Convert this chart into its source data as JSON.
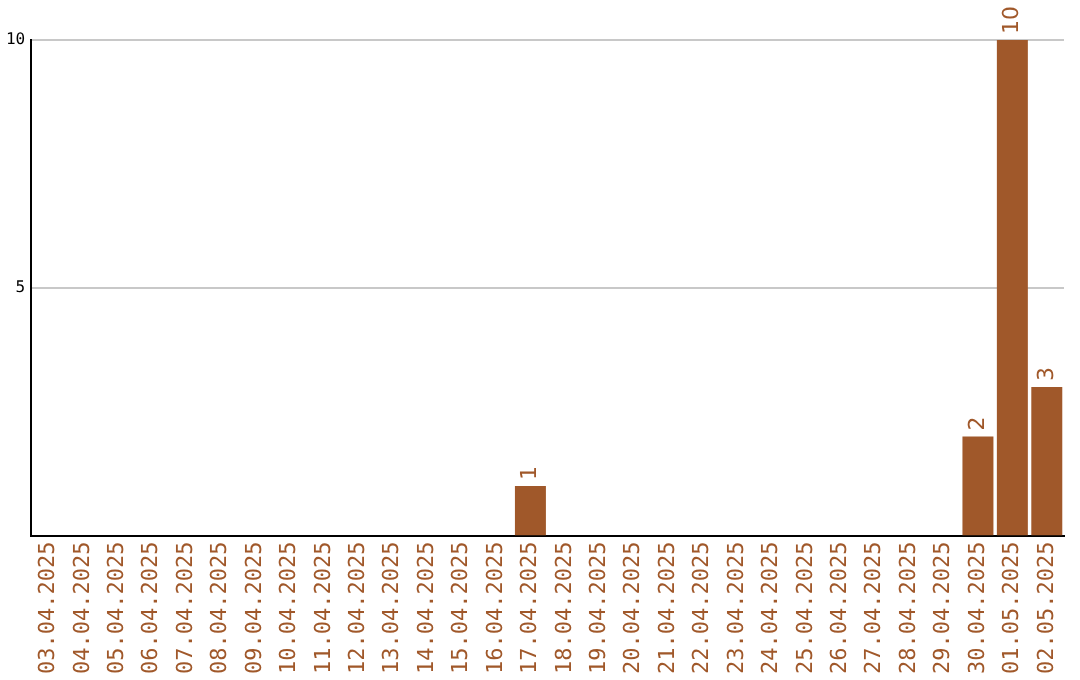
{
  "chart_data": {
    "type": "bar",
    "categories": [
      "03.04.2025",
      "04.04.2025",
      "05.04.2025",
      "06.04.2025",
      "07.04.2025",
      "08.04.2025",
      "09.04.2025",
      "10.04.2025",
      "11.04.2025",
      "12.04.2025",
      "13.04.2025",
      "14.04.2025",
      "15.04.2025",
      "16.04.2025",
      "17.04.2025",
      "18.04.2025",
      "19.04.2025",
      "20.04.2025",
      "21.04.2025",
      "22.04.2025",
      "23.04.2025",
      "24.04.2025",
      "25.04.2025",
      "26.04.2025",
      "27.04.2025",
      "28.04.2025",
      "29.04.2025",
      "30.04.2025",
      "01.05.2025",
      "02.05.2025"
    ],
    "values": [
      0,
      0,
      0,
      0,
      0,
      0,
      0,
      0,
      0,
      0,
      0,
      0,
      0,
      0,
      1,
      0,
      0,
      0,
      0,
      0,
      0,
      0,
      0,
      0,
      0,
      0,
      0,
      2,
      10,
      3
    ],
    "value_labels": [
      null,
      null,
      null,
      null,
      null,
      null,
      null,
      null,
      null,
      null,
      null,
      null,
      null,
      null,
      "1",
      null,
      null,
      null,
      null,
      null,
      null,
      null,
      null,
      null,
      null,
      null,
      null,
      "2",
      "10",
      "3"
    ],
    "color": "#a0582a",
    "ylim": [
      0,
      10
    ],
    "yticks": [
      5,
      10
    ],
    "grid": "y",
    "legend": false
  }
}
